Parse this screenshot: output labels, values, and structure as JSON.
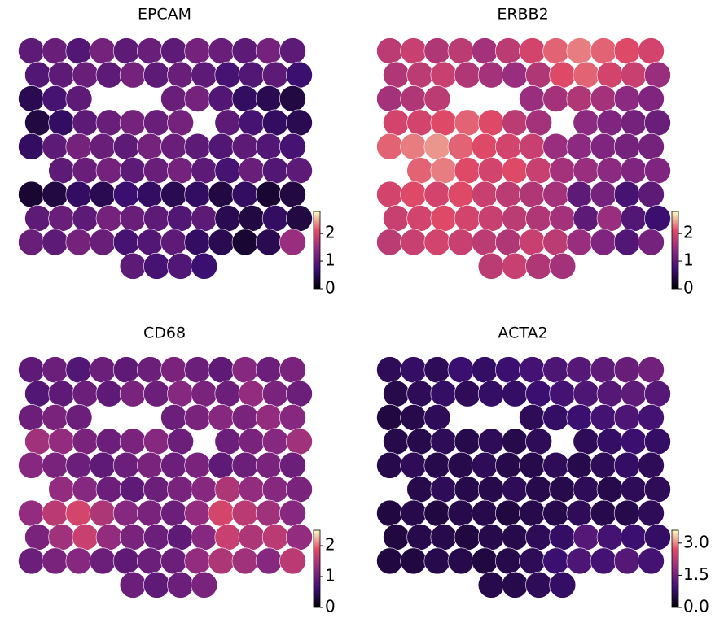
{
  "chart_data": [
    {
      "type": "spatial",
      "title": "EPCAM",
      "cmap": "magma",
      "clim": [
        0,
        2.8
      ],
      "cticks": [
        0,
        1,
        2
      ],
      "values": [
        [
          1,
          1.1,
          0.9,
          1.2,
          1,
          1.1,
          1,
          1.2,
          1.1,
          1,
          1.2,
          1
        ],
        [
          0.9,
          1,
          1.1,
          1,
          1.2,
          1,
          1.1,
          1,
          0.8,
          0.9,
          1,
          0.7
        ],
        [
          0.5,
          0.8,
          1,
          null,
          null,
          null,
          1.1,
          1.2,
          0.9,
          0.6,
          0.5,
          0.4
        ],
        [
          0.4,
          0.6,
          1,
          1.1,
          1.2,
          1.1,
          1.2,
          null,
          1,
          0.8,
          0.6,
          0.5
        ],
        [
          0.6,
          1,
          1.2,
          1.1,
          1,
          1.2,
          1.1,
          1,
          0.9,
          1,
          0.9,
          0.8
        ],
        [
          null,
          1,
          1.1,
          1.2,
          1,
          1.1,
          1.2,
          1,
          0.8,
          1.1,
          0.9,
          1
        ],
        [
          0.3,
          0.4,
          0.6,
          0.5,
          0.7,
          0.6,
          0.5,
          0.6,
          0.4,
          0.6,
          0.3,
          0.4
        ],
        [
          1,
          1.1,
          1,
          1.2,
          1.1,
          1,
          0.9,
          1,
          0.5,
          0.4,
          0.6,
          0.4
        ],
        [
          1.1,
          1,
          1.2,
          1.1,
          0.8,
          0.9,
          1,
          0.6,
          0.5,
          0.3,
          0.5,
          1.5
        ],
        [
          null,
          null,
          null,
          null,
          1,
          0.8,
          0.9,
          0.7,
          null,
          null,
          null,
          null
        ]
      ]
    },
    {
      "type": "spatial",
      "title": "ERBB2",
      "cmap": "magma",
      "clim": [
        0,
        2.8
      ],
      "cticks": [
        0,
        1,
        2
      ],
      "values": [
        [
          1.8,
          1.9,
          1.7,
          1.8,
          1.6,
          1.8,
          2,
          2.2,
          2.3,
          2.2,
          2.1,
          2
        ],
        [
          1.7,
          1.8,
          1.9,
          1.7,
          1.6,
          1.5,
          1.7,
          2.1,
          2.2,
          2,
          1.9,
          1.5
        ],
        [
          1.6,
          1.7,
          1.8,
          null,
          null,
          null,
          1.5,
          1.6,
          1.7,
          1.6,
          1.4,
          1.3
        ],
        [
          2,
          2,
          2.1,
          2.2,
          2.1,
          1.8,
          1.6,
          null,
          1.4,
          1.3,
          1.2,
          1.1
        ],
        [
          2.2,
          2.3,
          2.4,
          2.2,
          2.1,
          2,
          1.9,
          1.5,
          1.4,
          1.3,
          1.2,
          1.2
        ],
        [
          null,
          2.2,
          2.3,
          2.1,
          2,
          2.1,
          1.9,
          1.6,
          1.5,
          1.4,
          1.3,
          1.3
        ],
        [
          2,
          2.1,
          2,
          2.1,
          1.9,
          1.8,
          1.7,
          1.6,
          1,
          1.2,
          0.8,
          1
        ],
        [
          1.9,
          2,
          2.1,
          2,
          1.9,
          1.8,
          1.7,
          1.6,
          1,
          1.5,
          0.9,
          0.7
        ],
        [
          1.8,
          1.9,
          2,
          1.9,
          1.8,
          1.7,
          1.9,
          1.8,
          1.5,
          1.3,
          0.9,
          1.2
        ],
        [
          null,
          null,
          null,
          null,
          1.8,
          1.9,
          1.7,
          1.6,
          null,
          null,
          null,
          null
        ]
      ]
    },
    {
      "type": "spatial",
      "title": "CD68",
      "cmap": "magma",
      "clim": [
        0,
        2.5
      ],
      "cticks": [
        0,
        1,
        2
      ],
      "values": [
        [
          0.9,
          1,
          0.8,
          1,
          0.9,
          1,
          1.1,
          1,
          0.9,
          1.2,
          1,
          1.1
        ],
        [
          0.8,
          0.9,
          1,
          0.9,
          1.1,
          1,
          1.2,
          1.1,
          1,
          1.3,
          1.1,
          1
        ],
        [
          1,
          1.1,
          1,
          null,
          null,
          null,
          1,
          1.1,
          1.2,
          1.1,
          1.3,
          1.2
        ],
        [
          1.4,
          1.3,
          1.1,
          1,
          1.1,
          1.2,
          1,
          null,
          1,
          1.1,
          1.2,
          1.4
        ],
        [
          1.2,
          1.1,
          1,
          0.9,
          1,
          1.1,
          1,
          1.1,
          0.9,
          1,
          1.1,
          1
        ],
        [
          null,
          1.3,
          1.2,
          1,
          0.9,
          1,
          1.1,
          1.2,
          1.5,
          1.3,
          1.2,
          1.1
        ],
        [
          1.3,
          1.6,
          1.8,
          1.5,
          1.2,
          1.1,
          1,
          1.3,
          1.8,
          1.6,
          1.4,
          1.2
        ],
        [
          1.1,
          1.4,
          1.7,
          1.3,
          1.1,
          1,
          0.9,
          1.2,
          1.7,
          1.5,
          1.6,
          1.3
        ],
        [
          1,
          1.1,
          1.2,
          1,
          0.9,
          1,
          1,
          1.3,
          1.5,
          1.4,
          1.2,
          1.6
        ],
        [
          null,
          null,
          null,
          null,
          1,
          0.9,
          1,
          1.1,
          null,
          null,
          null,
          null
        ]
      ]
    },
    {
      "type": "spatial",
      "title": "ACTA2",
      "cmap": "magma",
      "clim": [
        0,
        3.6
      ],
      "cticks": [
        {
          "value": 0,
          "label": "0.0"
        },
        {
          "value": 1.5,
          "label": "1.5"
        },
        {
          "value": 3,
          "label": "3.0"
        }
      ],
      "values": [
        [
          0.7,
          0.8,
          0.7,
          0.9,
          0.8,
          0.9,
          1,
          1.1,
          1.2,
          1.3,
          1.4,
          1.5
        ],
        [
          0.6,
          0.7,
          0.8,
          0.7,
          0.8,
          0.8,
          0.9,
          1,
          1.1,
          1.2,
          1.3,
          1.2
        ],
        [
          0.5,
          0.6,
          0.7,
          null,
          null,
          null,
          0.7,
          0.8,
          0.9,
          1,
          1.1,
          1
        ],
        [
          0.6,
          0.6,
          0.7,
          0.6,
          0.7,
          0.6,
          0.7,
          null,
          0.7,
          0.8,
          0.9,
          0.8
        ],
        [
          0.6,
          0.7,
          0.6,
          0.6,
          0.7,
          0.6,
          0.6,
          0.7,
          0.6,
          0.7,
          0.8,
          0.7
        ],
        [
          null,
          0.6,
          0.7,
          0.6,
          0.6,
          0.7,
          0.6,
          0.6,
          0.7,
          0.6,
          0.7,
          0.7
        ],
        [
          0.5,
          0.6,
          0.5,
          0.6,
          0.6,
          0.5,
          0.6,
          0.6,
          0.7,
          0.6,
          0.6,
          0.7
        ],
        [
          0.5,
          0.6,
          0.6,
          0.5,
          0.6,
          0.6,
          0.7,
          0.8,
          1.2,
          1,
          0.9,
          0.8
        ],
        [
          0.5,
          0.5,
          0.6,
          0.6,
          0.5,
          0.6,
          0.7,
          0.9,
          1.1,
          1,
          1.2,
          1
        ],
        [
          null,
          null,
          null,
          null,
          0.6,
          0.6,
          0.7,
          0.8,
          null,
          null,
          null,
          null
        ]
      ]
    }
  ]
}
